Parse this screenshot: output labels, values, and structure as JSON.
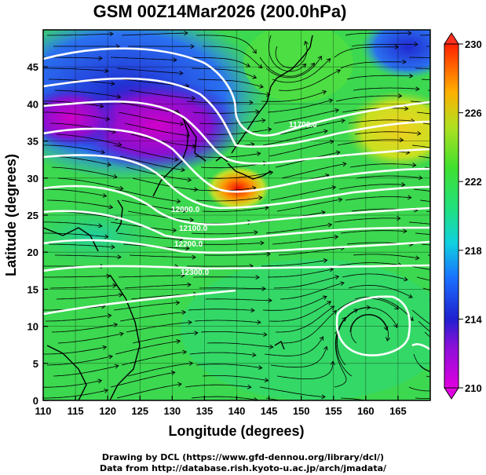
{
  "title": "GSM 00Z14Mar2026 (200.0hPa)",
  "xlabel": "Longitude (degrees)",
  "ylabel": "Latitude  (degrees)",
  "x_ticks": [
    "110",
    "115",
    "120",
    "125",
    "130",
    "135",
    "140",
    "145",
    "150",
    "155",
    "160",
    "165"
  ],
  "y_ticks": [
    "0",
    "5",
    "10",
    "15",
    "20",
    "25",
    "30",
    "35",
    "40",
    "45"
  ],
  "colorbar_ticks": [
    "210",
    "214",
    "218",
    "222",
    "226",
    "230"
  ],
  "contour_labels": [
    "11700.0",
    "12000.0",
    "12100.0",
    "12200.0",
    "12300.0"
  ],
  "credits": [
    "Drawing by DCL (https://www.gfd-dennou.org/library/dcl/)",
    "Data from http://database.rish.kyoto-u.ac.jp/arch/jmadata/"
  ],
  "colors": {
    "cold": "#d000d0",
    "cool": "#2030d0",
    "mid": "#30d060",
    "warm": "#ff9900",
    "hot": "#e81000",
    "contour": "#ffffff",
    "vector": "#000000"
  }
}
